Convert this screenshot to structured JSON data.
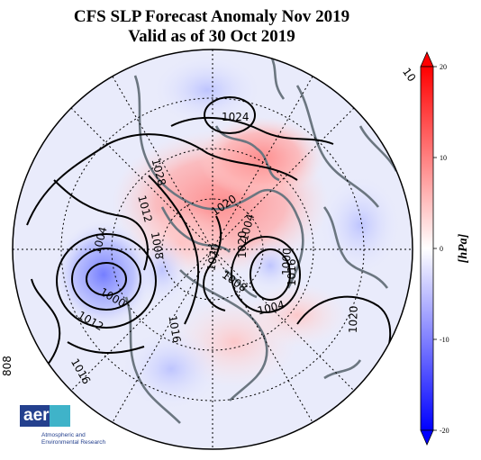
{
  "figure": {
    "title_line1": "CFS SLP Forecast Anomaly Nov 2019",
    "title_line2": "Valid as of 30 Oct 2019"
  },
  "colorbar": {
    "label": "[hPa]",
    "ticks": [
      "20",
      "10",
      "0",
      "-10",
      "-20"
    ],
    "min": -20,
    "max": 20,
    "colors": {
      "high": "#ff0000",
      "mid": "#ffffff",
      "low": "#0000ff"
    }
  },
  "contour_labels": {
    "c1024": "1024",
    "c1028": "1028",
    "c1020a": "1020",
    "c1020b": "1020",
    "c1020c": "1020",
    "c1020d": "1020",
    "c1016a": "1016",
    "c1016b": "1016",
    "c1016c": "1016",
    "c1012a": "1012",
    "c1012b": "1012",
    "c1008a": "1008",
    "c1008b": "1008",
    "c1004a": "1004",
    "c1004b": "1004",
    "c1004c": "1004",
    "c1000a": "1000",
    "c1000b": "1000",
    "edge_left": "808",
    "edge_right": "10"
  },
  "logo": {
    "mark": "aer",
    "line1": "Atmospheric and",
    "line2": "Environmental Research",
    "colors": {
      "navy": "#24408e",
      "teal": "#3fb3c9"
    }
  }
}
